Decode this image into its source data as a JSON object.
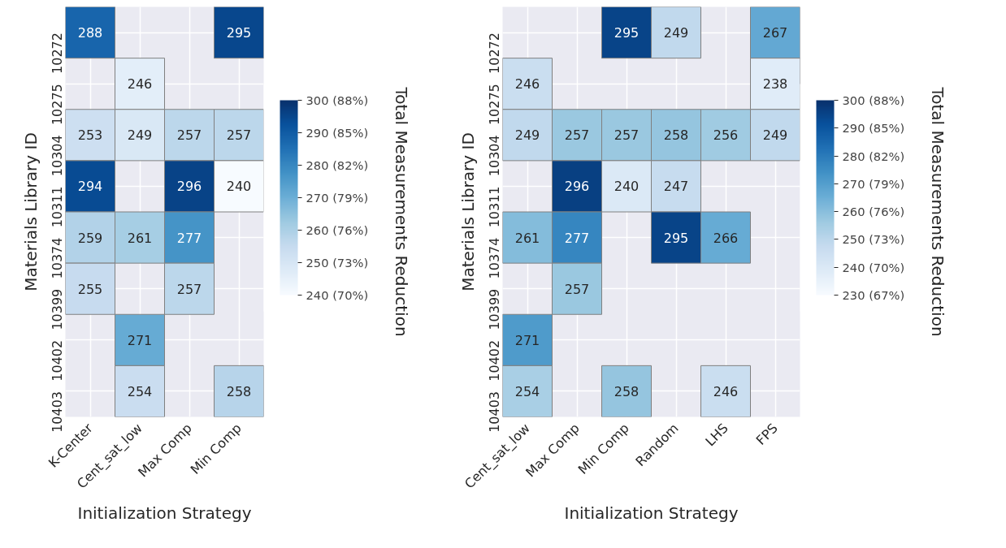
{
  "chart_data": [
    {
      "type": "heatmap",
      "xlabel": "Initialization Strategy",
      "ylabel": "Materials Library ID",
      "clabel": "Total Measurements Reduction",
      "categories": [
        "K-Center",
        "Cent_sat_low",
        "Max Comp",
        "Min Comp"
      ],
      "y_categories": [
        "10272",
        "10275",
        "10304",
        "10311",
        "10374",
        "10399",
        "10402",
        "10403"
      ],
      "cells": [
        [
          288,
          null,
          null,
          295
        ],
        [
          null,
          246,
          null,
          null
        ],
        [
          253,
          249,
          257,
          257
        ],
        [
          294,
          null,
          296,
          240
        ],
        [
          259,
          261,
          277,
          null
        ],
        [
          255,
          null,
          257,
          null
        ],
        [
          null,
          271,
          null,
          null
        ],
        [
          null,
          254,
          null,
          258
        ]
      ],
      "clim": [
        240,
        300
      ],
      "cticks": [
        {
          "value": 240,
          "label": "240 (70%)"
        },
        {
          "value": 250,
          "label": "250 (73%)"
        },
        {
          "value": 260,
          "label": "260 (76%)"
        },
        {
          "value": 270,
          "label": "270 (79%)"
        },
        {
          "value": 280,
          "label": "280 (82%)"
        },
        {
          "value": 290,
          "label": "290 (85%)"
        },
        {
          "value": 300,
          "label": "300 (88%)"
        }
      ],
      "grid": true,
      "data_labels": true
    },
    {
      "type": "heatmap",
      "xlabel": "Initialization Strategy",
      "ylabel": "Materials Library ID",
      "clabel": "Total Measurements Reduction",
      "categories": [
        "Cent_sat_low",
        "Max Comp",
        "Min Comp",
        "Random",
        "LHS",
        "FPS"
      ],
      "y_categories": [
        "10272",
        "10275",
        "10304",
        "10311",
        "10374",
        "10399",
        "10402",
        "10403"
      ],
      "cells": [
        [
          null,
          null,
          295,
          249,
          null,
          267
        ],
        [
          246,
          null,
          null,
          null,
          null,
          238
        ],
        [
          249,
          257,
          257,
          258,
          256,
          249
        ],
        [
          null,
          296,
          240,
          247,
          null,
          null
        ],
        [
          261,
          277,
          null,
          295,
          266,
          null
        ],
        [
          null,
          257,
          null,
          null,
          null,
          null
        ],
        [
          271,
          null,
          null,
          null,
          null,
          null
        ],
        [
          254,
          null,
          258,
          null,
          246,
          null
        ]
      ],
      "clim": [
        230,
        300
      ],
      "cticks": [
        {
          "value": 230,
          "label": "230 (67%)"
        },
        {
          "value": 240,
          "label": "240 (70%)"
        },
        {
          "value": 250,
          "label": "250 (73%)"
        },
        {
          "value": 260,
          "label": "260 (76%)"
        },
        {
          "value": 270,
          "label": "270 (79%)"
        },
        {
          "value": 280,
          "label": "280 (82%)"
        },
        {
          "value": 290,
          "label": "290 (85%)"
        },
        {
          "value": 300,
          "label": "300 (88%)"
        }
      ],
      "grid": true,
      "data_labels": true
    }
  ]
}
